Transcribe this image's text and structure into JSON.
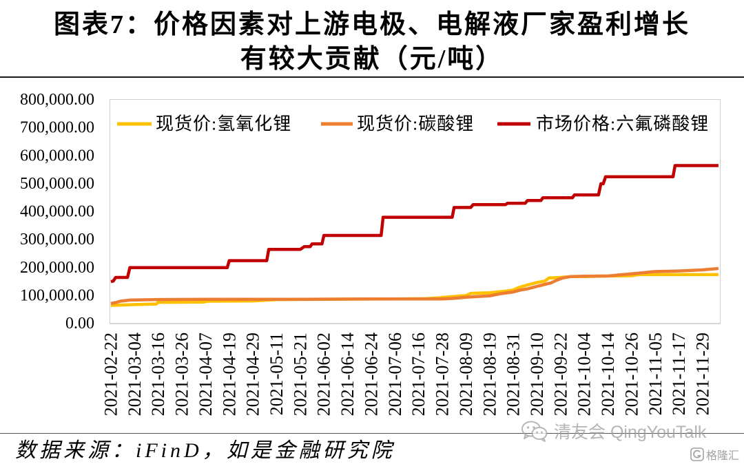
{
  "chart_data": {
    "type": "line",
    "title": [
      "图表7：价格因素对上游电极、电解液厂家盈利增长",
      "有较大贡献（元/吨）"
    ],
    "ylim": [
      0,
      800000
    ],
    "y_ticks": [
      0,
      100000,
      200000,
      300000,
      400000,
      500000,
      600000,
      700000,
      800000
    ],
    "y_tick_labels": [
      "0.00",
      "100,000.00",
      "200,000.00",
      "300,000.00",
      "400,000.00",
      "500,000.00",
      "600,000.00",
      "700,000.00",
      "800,000.00"
    ],
    "x_tick_labels": [
      "2021-02-22",
      "2021-03-04",
      "2021-03-16",
      "2021-03-26",
      "2021-04-07",
      "2021-04-19",
      "2021-04-29",
      "2021-05-11",
      "2021-05-21",
      "2021-06-02",
      "2021-06-14",
      "2021-06-24",
      "2021-07-06",
      "2021-07-16",
      "2021-07-28",
      "2021-08-09",
      "2021-08-19",
      "2021-08-31",
      "2021-09-10",
      "2021-09-22",
      "2021-10-04",
      "2021-10-14",
      "2021-10-26",
      "2021-11-05",
      "2021-11-17",
      "2021-11-29"
    ],
    "grid": false,
    "legend": "top",
    "series": [
      {
        "name": "现货价:氢氧化锂",
        "color": "#FFC000",
        "points": [
          [
            "2021-02-22",
            65000
          ],
          [
            "2021-03-01",
            67000
          ],
          [
            "2021-03-04",
            68000
          ],
          [
            "2021-03-15",
            70000
          ],
          [
            "2021-03-16",
            76000
          ],
          [
            "2021-04-06",
            77000
          ],
          [
            "2021-04-08",
            80000
          ],
          [
            "2021-04-29",
            81000
          ],
          [
            "2021-05-07",
            84000
          ],
          [
            "2021-05-11",
            86000
          ],
          [
            "2021-06-02",
            87000
          ],
          [
            "2021-07-06",
            88000
          ],
          [
            "2021-07-20",
            89000
          ],
          [
            "2021-07-26",
            92000
          ],
          [
            "2021-08-03",
            97000
          ],
          [
            "2021-08-09",
            100000
          ],
          [
            "2021-08-11",
            108000
          ],
          [
            "2021-08-19",
            110000
          ],
          [
            "2021-08-26",
            115000
          ],
          [
            "2021-08-31",
            120000
          ],
          [
            "2021-09-02",
            128000
          ],
          [
            "2021-09-06",
            138000
          ],
          [
            "2021-09-10",
            147000
          ],
          [
            "2021-09-14",
            152000
          ],
          [
            "2021-09-16",
            163000
          ],
          [
            "2021-09-22",
            165000
          ],
          [
            "2021-09-27",
            168000
          ],
          [
            "2021-10-04",
            168000
          ],
          [
            "2021-10-14",
            170000
          ],
          [
            "2021-10-26",
            171000
          ],
          [
            "2021-10-29",
            175000
          ],
          [
            "2021-12-07",
            175000
          ]
        ]
      },
      {
        "name": "现货价:碳酸锂",
        "color": "#ED7D31",
        "points": [
          [
            "2021-02-22",
            72000
          ],
          [
            "2021-02-24",
            75000
          ],
          [
            "2021-02-26",
            80000
          ],
          [
            "2021-03-02",
            84000
          ],
          [
            "2021-03-16",
            86000
          ],
          [
            "2021-04-07",
            87000
          ],
          [
            "2021-05-21",
            87000
          ],
          [
            "2021-06-24",
            88000
          ],
          [
            "2021-07-28",
            88000
          ],
          [
            "2021-08-03",
            90000
          ],
          [
            "2021-08-09",
            94000
          ],
          [
            "2021-08-19",
            99000
          ],
          [
            "2021-08-24",
            106000
          ],
          [
            "2021-08-31",
            113000
          ],
          [
            "2021-09-03",
            120000
          ],
          [
            "2021-09-06",
            124000
          ],
          [
            "2021-09-10",
            133000
          ],
          [
            "2021-09-14",
            140000
          ],
          [
            "2021-09-17",
            145000
          ],
          [
            "2021-09-20",
            155000
          ],
          [
            "2021-09-23",
            163000
          ],
          [
            "2021-09-27",
            168000
          ],
          [
            "2021-10-04",
            169000
          ],
          [
            "2021-10-14",
            170000
          ],
          [
            "2021-10-20",
            174000
          ],
          [
            "2021-10-26",
            178000
          ],
          [
            "2021-11-01",
            183000
          ],
          [
            "2021-11-05",
            186000
          ],
          [
            "2021-11-12",
            187000
          ],
          [
            "2021-11-17",
            188000
          ],
          [
            "2021-11-29",
            192000
          ],
          [
            "2021-12-07",
            197000
          ]
        ]
      },
      {
        "name": "市场价格:六氟磷酸锂",
        "color": "#C00000",
        "points": [
          [
            "2021-02-22",
            150000
          ],
          [
            "2021-02-23",
            152000
          ],
          [
            "2021-02-24",
            165000
          ],
          [
            "2021-03-01",
            165000
          ],
          [
            "2021-03-02",
            200000
          ],
          [
            "2021-04-18",
            200000
          ],
          [
            "2021-04-19",
            225000
          ],
          [
            "2021-05-06",
            225000
          ],
          [
            "2021-05-07",
            265000
          ],
          [
            "2021-05-21",
            265000
          ],
          [
            "2021-05-23",
            275000
          ],
          [
            "2021-05-26",
            275000
          ],
          [
            "2021-05-27",
            285000
          ],
          [
            "2021-06-01",
            285000
          ],
          [
            "2021-06-02",
            315000
          ],
          [
            "2021-06-29",
            315000
          ],
          [
            "2021-06-30",
            380000
          ],
          [
            "2021-08-02",
            380000
          ],
          [
            "2021-08-03",
            415000
          ],
          [
            "2021-08-11",
            415000
          ],
          [
            "2021-08-12",
            425000
          ],
          [
            "2021-08-27",
            425000
          ],
          [
            "2021-08-28",
            430000
          ],
          [
            "2021-09-05",
            430000
          ],
          [
            "2021-09-06",
            440000
          ],
          [
            "2021-09-12",
            440000
          ],
          [
            "2021-09-13",
            450000
          ],
          [
            "2021-09-28",
            450000
          ],
          [
            "2021-09-29",
            460000
          ],
          [
            "2021-10-10",
            460000
          ],
          [
            "2021-10-11",
            500000
          ],
          [
            "2021-10-12",
            500000
          ],
          [
            "2021-10-13",
            525000
          ],
          [
            "2021-11-14",
            525000
          ],
          [
            "2021-11-15",
            565000
          ],
          [
            "2021-12-07",
            565000
          ]
        ]
      }
    ]
  },
  "source": "数据来源：iFinD，如是金融研究院",
  "watermark": {
    "icon": "wechat-icon",
    "text": "清友会 QingYouTalk",
    "logo_icon": "gelonghui-logo-icon",
    "logo_text": "格隆汇"
  }
}
